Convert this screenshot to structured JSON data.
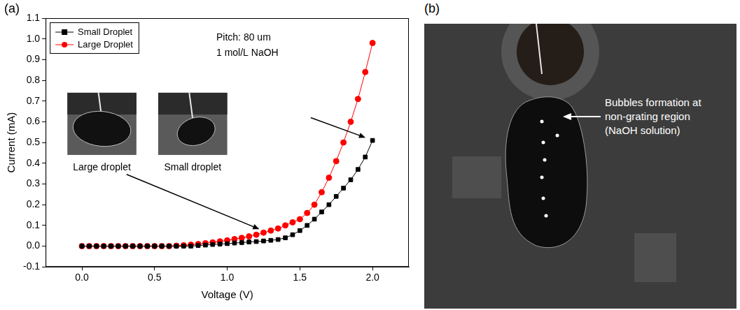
{
  "chart_data": {
    "type": "line",
    "panel_label": "(a)",
    "x_label": "Voltage (V)",
    "y_label": "Current (mA)",
    "annotations": [
      "Pitch: 80 um",
      "1 mol/L NaOH"
    ],
    "inset_labels": [
      "Large droplet",
      "Small droplet"
    ],
    "x": [
      0,
      0.05,
      0.1,
      0.15,
      0.2,
      0.25,
      0.3,
      0.35,
      0.4,
      0.45,
      0.5,
      0.55,
      0.6,
      0.65,
      0.7,
      0.75,
      0.8,
      0.85,
      0.9,
      0.95,
      1,
      1.05,
      1.1,
      1.15,
      1.2,
      1.25,
      1.3,
      1.35,
      1.4,
      1.45,
      1.5,
      1.55,
      1.6,
      1.65,
      1.7,
      1.75,
      1.8,
      1.85,
      1.9,
      1.95,
      2
    ],
    "series": [
      {
        "name": "Small Droplet",
        "color": "#000000",
        "marker": "square",
        "line_style": "solid",
        "values": [
          0,
          0,
          0,
          0,
          0,
          0,
          0,
          0,
          0,
          0,
          0,
          0,
          0,
          0,
          0,
          0,
          0.003,
          0.005,
          0.008,
          0.01,
          0.012,
          0.015,
          0.017,
          0.02,
          0.022,
          0.025,
          0.028,
          0.032,
          0.04,
          0.055,
          0.075,
          0.1,
          0.13,
          0.165,
          0.2,
          0.24,
          0.28,
          0.32,
          0.37,
          0.43,
          0.51
        ]
      },
      {
        "name": "Large Droplet",
        "color": "#ff0000",
        "marker": "circle",
        "line_style": "solid",
        "values": [
          0,
          0,
          0,
          0,
          0,
          0,
          0,
          0,
          0,
          0,
          0,
          0,
          0,
          0.002,
          0.004,
          0.007,
          0.01,
          0.014,
          0.018,
          0.023,
          0.028,
          0.034,
          0.04,
          0.047,
          0.055,
          0.065,
          0.075,
          0.085,
          0.1,
          0.115,
          0.13,
          0.16,
          0.2,
          0.26,
          0.33,
          0.41,
          0.5,
          0.6,
          0.71,
          0.84,
          0.98
        ]
      }
    ],
    "xlim": [
      -0.25,
      2.25
    ],
    "xticks": [
      {
        "value": 0,
        "label": "0.0"
      },
      0.5,
      {
        "value": 1,
        "label": "1.0"
      },
      1.5,
      {
        "value": 2,
        "label": "2.0"
      }
    ],
    "ylim": [
      -0.1,
      1.1
    ],
    "yticks": [
      -0.1,
      {
        "value": 0,
        "label": "0.0"
      },
      0.1,
      0.2,
      0.3,
      0.4,
      0.5,
      0.6,
      0.7,
      0.8,
      0.9,
      {
        "value": 1,
        "label": "1.0"
      },
      1.1
    ],
    "grid": false,
    "legend": "upper left"
  },
  "photo": {
    "panel_label": "(b)",
    "annotation": [
      "Bubbles formation at",
      "non-grating region",
      "(NaOH solution)"
    ]
  }
}
